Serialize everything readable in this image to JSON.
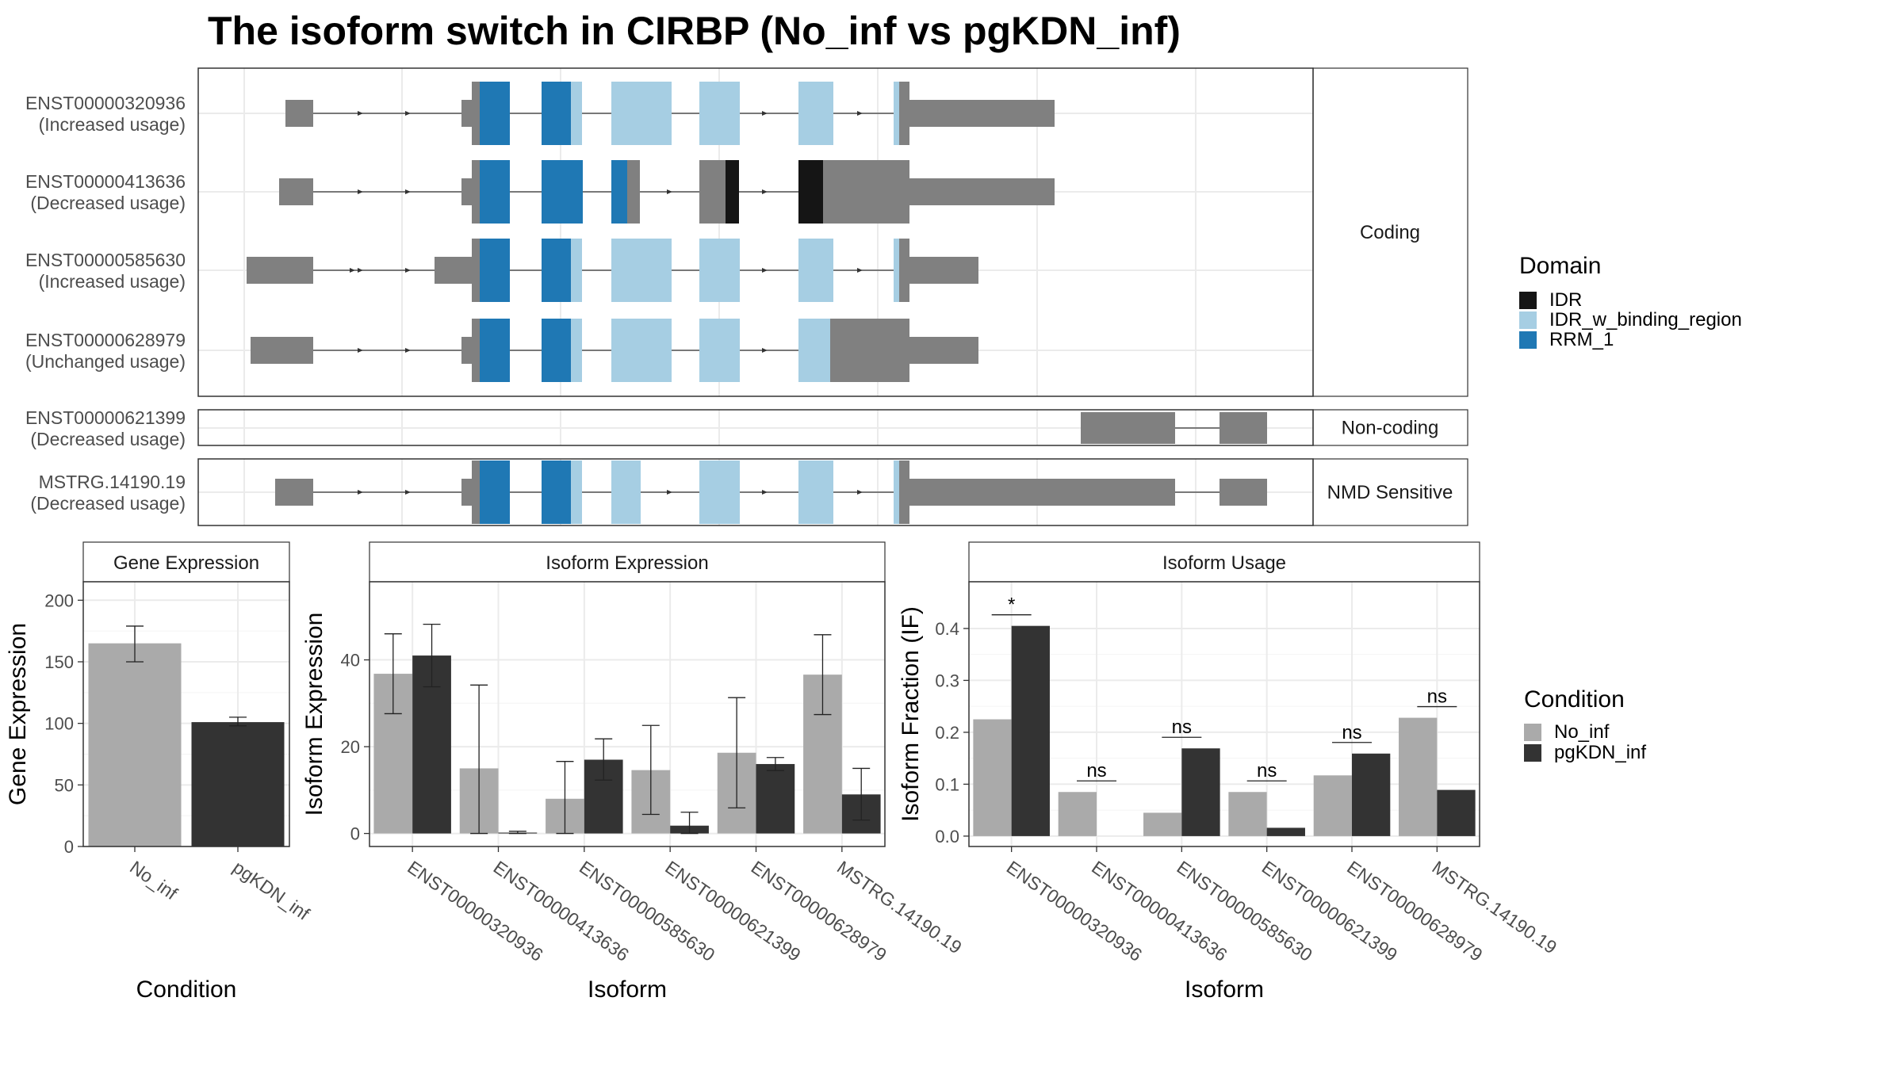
{
  "title": "The isoform switch in CIRBP (No_inf vs pgKDN_inf)",
  "colors": {
    "IDR": "#151515",
    "IDR_w_binding_region": "#a6cee3",
    "RRM_1": "#1f78b4",
    "noncoding": "#808080",
    "No_inf": "#aaaaaa",
    "pgKDN_inf": "#333333",
    "strip": "#ffffff",
    "grid": "#ebebeb"
  },
  "structure": {
    "panel_labels": [
      "Coding",
      "Non-coding",
      "NMD Sensitive"
    ],
    "isoforms": [
      {
        "id": "ENST00000320936",
        "usage": "(Increased usage)",
        "group": "Coding"
      },
      {
        "id": "ENST00000413636",
        "usage": "(Decreased usage)",
        "group": "Coding"
      },
      {
        "id": "ENST00000585630",
        "usage": "(Increased usage)",
        "group": "Coding"
      },
      {
        "id": "ENST00000628979",
        "usage": "(Unchanged usage)",
        "group": "Coding"
      },
      {
        "id": "ENST00000621399",
        "usage": "(Decreased usage)",
        "group": "Non-coding"
      },
      {
        "id": "MSTRG.14190.19",
        "usage": "(Decreased usage)",
        "group": "NMD Sensitive"
      }
    ]
  },
  "legend_domain": {
    "title": "Domain",
    "items": [
      {
        "label": "IDR",
        "color": "#151515"
      },
      {
        "label": "IDR_w_binding_region",
        "color": "#a6cee3"
      },
      {
        "label": "RRM_1",
        "color": "#1f78b4"
      }
    ]
  },
  "legend_condition": {
    "title": "Condition",
    "items": [
      {
        "label": "No_inf",
        "color": "#aaaaaa"
      },
      {
        "label": "pgKDN_inf",
        "color": "#333333"
      }
    ]
  },
  "chart_data": [
    {
      "type": "bar",
      "title": "Gene Expression",
      "xlabel": "Condition",
      "ylabel": "Gene Expression",
      "categories": [
        "No_inf",
        "pgKDN_inf"
      ],
      "values": [
        165,
        101
      ],
      "errors": [
        [
          150,
          179
        ],
        [
          98,
          105
        ]
      ],
      "ylim": [
        0,
        215
      ],
      "yticks": [
        0,
        50,
        100,
        150,
        200
      ]
    },
    {
      "type": "bar",
      "title": "Isoform Expression",
      "xlabel": "Isoform",
      "ylabel": "Isoform Expression",
      "categories": [
        "ENST00000320936",
        "ENST00000413636",
        "ENST00000585630",
        "ENST00000621399",
        "ENST00000628979",
        "MSTRG.14190.19"
      ],
      "series": [
        {
          "name": "No_inf",
          "values": [
            36.8,
            15.0,
            8.0,
            14.6,
            18.6,
            36.6
          ],
          "errors": [
            [
              27.6,
              46.0
            ],
            [
              0,
              34.2
            ],
            [
              0,
              16.6
            ],
            [
              4.4,
              24.9
            ],
            [
              5.9,
              31.3
            ],
            [
              27.4,
              45.8
            ]
          ]
        },
        {
          "name": "pgKDN_inf",
          "values": [
            41.0,
            0.2,
            17.0,
            1.8,
            16.0,
            9.0
          ],
          "errors": [
            [
              33.8,
              48.2
            ],
            [
              0,
              0.5
            ],
            [
              12.3,
              21.8
            ],
            [
              0,
              4.9
            ],
            [
              14.5,
              17.5
            ],
            [
              3.1,
              15.0
            ]
          ]
        }
      ],
      "ylim": [
        -3,
        58
      ],
      "yticks": [
        0,
        20,
        40
      ]
    },
    {
      "type": "bar",
      "title": "Isoform Usage",
      "xlabel": "Isoform",
      "ylabel": "Isoform Fraction (IF)",
      "categories": [
        "ENST00000320936",
        "ENST00000413636",
        "ENST00000585630",
        "ENST00000621399",
        "ENST00000628979",
        "MSTRG.14190.19"
      ],
      "series": [
        {
          "name": "No_inf",
          "values": [
            0.225,
            0.085,
            0.045,
            0.085,
            0.117,
            0.228
          ]
        },
        {
          "name": "pgKDN_inf",
          "values": [
            0.405,
            0.0,
            0.169,
            0.016,
            0.159,
            0.089
          ]
        }
      ],
      "significance": [
        "*",
        "ns",
        "ns",
        "ns",
        "ns",
        "ns"
      ],
      "ylim": [
        -0.02,
        0.49
      ],
      "yticks": [
        0.0,
        0.1,
        0.2,
        0.3,
        0.4
      ],
      "ytick_labels": [
        "0.0",
        "0.1",
        "0.2",
        "0.3",
        "0.4"
      ]
    }
  ]
}
